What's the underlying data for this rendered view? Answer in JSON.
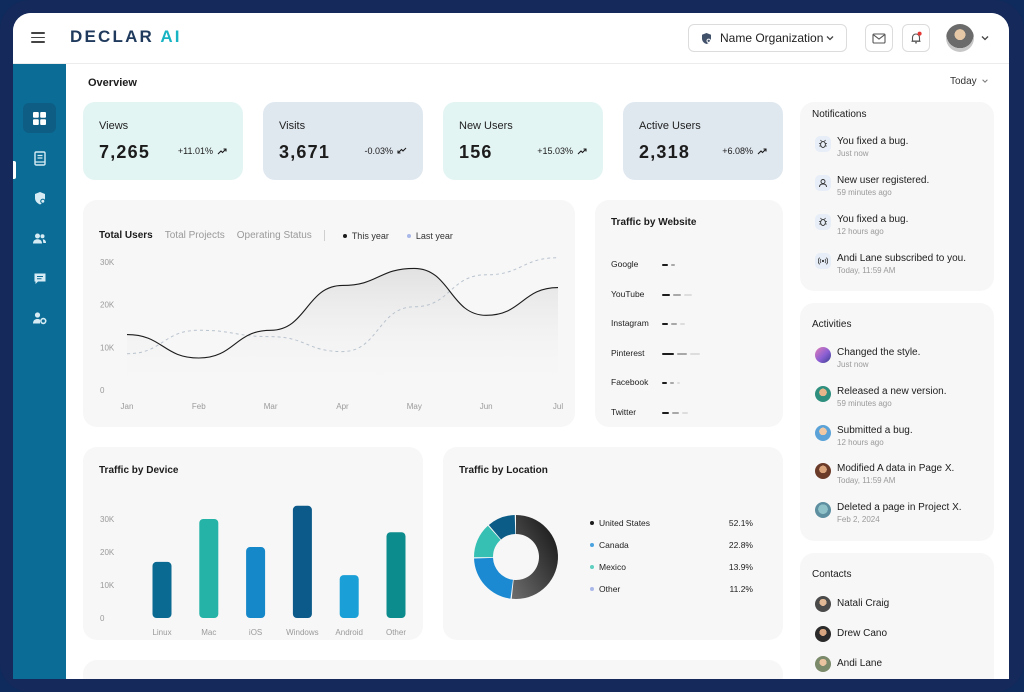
{
  "app": {
    "logo_main": "DECLAR ",
    "logo_ai": "AI"
  },
  "header": {
    "org_name": "Name Organization"
  },
  "overview": {
    "title": "Overview",
    "period": "Today"
  },
  "stats": [
    {
      "label": "Views",
      "value": "7,265",
      "change": "+11.01%",
      "trend": "up",
      "color": "#e3f5f3"
    },
    {
      "label": "Visits",
      "value": "3,671",
      "change": "-0.03%",
      "trend": "down",
      "color": "#dfe7ef"
    },
    {
      "label": "New Users",
      "value": "156",
      "change": "+15.03%",
      "trend": "up",
      "color": "#e3f5f3"
    },
    {
      "label": "Active Users",
      "value": "2,318",
      "change": "+6.08%",
      "trend": "up",
      "color": "#dfe7ef"
    }
  ],
  "users_chart": {
    "tabs": [
      "Total Users",
      "Total Projects",
      "Operating Status"
    ],
    "legend": [
      "This year",
      "Last year"
    ]
  },
  "traffic_website": {
    "title": "Traffic by Website",
    "sites": [
      "Google",
      "YouTube",
      "Instagram",
      "Pinterest",
      "Facebook",
      "Twitter"
    ]
  },
  "traffic_device": {
    "title": "Traffic by Device"
  },
  "traffic_location": {
    "title": "Traffic by Location",
    "rows": [
      {
        "name": "United States",
        "value": "52.1%",
        "color": "#1c1c1c"
      },
      {
        "name": "Canada",
        "value": "22.8%",
        "color": "#4aa3df"
      },
      {
        "name": "Mexico",
        "value": "13.9%",
        "color": "#5ecfc0"
      },
      {
        "name": "Other",
        "value": "11.2%",
        "color": "#a9b8e8"
      }
    ]
  },
  "notifications": {
    "title": "Notifications",
    "items": [
      {
        "text": "You fixed a bug.",
        "time": "Just now",
        "icon": "bug-icon"
      },
      {
        "text": "New user registered.",
        "time": "59 minutes ago",
        "icon": "user-icon"
      },
      {
        "text": "You fixed a bug.",
        "time": "12 hours ago",
        "icon": "bug-icon"
      },
      {
        "text": "Andi Lane subscribed to you.",
        "time": "Today, 11:59 AM",
        "icon": "broadcast-icon"
      }
    ]
  },
  "activities": {
    "title": "Activities",
    "items": [
      {
        "text": "Changed the style.",
        "time": "Just now"
      },
      {
        "text": "Released a new version.",
        "time": "59 minutes ago"
      },
      {
        "text": "Submitted a bug.",
        "time": "12 hours ago"
      },
      {
        "text": "Modified A data in Page X.",
        "time": "Today, 11:59 AM"
      },
      {
        "text": "Deleted a page in Project X.",
        "time": "Feb 2, 2024"
      }
    ]
  },
  "contacts": {
    "title": "Contacts",
    "items": [
      "Natali Craig",
      "Drew Cano",
      "Andi Lane"
    ]
  },
  "chart_data": [
    {
      "type": "line",
      "x": [
        "Jan",
        "Feb",
        "Mar",
        "Apr",
        "May",
        "Jun",
        "Jul"
      ],
      "ylim": [
        0,
        30000
      ],
      "yticks": [
        "0",
        "10K",
        "20K",
        "30K"
      ],
      "series": [
        {
          "name": "This year",
          "values": [
            13000,
            7500,
            14000,
            24500,
            28500,
            17500,
            24000
          ]
        },
        {
          "name": "Last year",
          "values": [
            8500,
            14000,
            12500,
            9000,
            19500,
            27000,
            31000
          ]
        }
      ]
    },
    {
      "type": "bar",
      "categories": [
        "Google",
        "YouTube",
        "Instagram",
        "Pinterest",
        "Facebook",
        "Twitter"
      ],
      "series": [
        {
          "values": [
            6,
            8,
            6,
            12,
            5,
            7
          ]
        },
        {
          "values": [
            4,
            8,
            6,
            10,
            4,
            7
          ]
        },
        {
          "values": [
            0,
            8,
            5,
            10,
            3,
            6
          ]
        }
      ]
    },
    {
      "type": "bar",
      "categories": [
        "Linux",
        "Mac",
        "iOS",
        "Windows",
        "Android",
        "Other"
      ],
      "values": [
        17000,
        30000,
        21500,
        34000,
        13000,
        26000
      ],
      "ylim": [
        0,
        30000
      ],
      "yticks": [
        "0",
        "10K",
        "20K",
        "30K"
      ],
      "colors": [
        "#0b6a92",
        "#24b3a6",
        "#1588c9",
        "#0b5a8a",
        "#1aa0d6",
        "#0c8c8c"
      ]
    },
    {
      "type": "pie",
      "labels": [
        "United States",
        "Canada",
        "Mexico",
        "Other"
      ],
      "values": [
        52.1,
        22.8,
        13.9,
        11.2
      ]
    }
  ]
}
